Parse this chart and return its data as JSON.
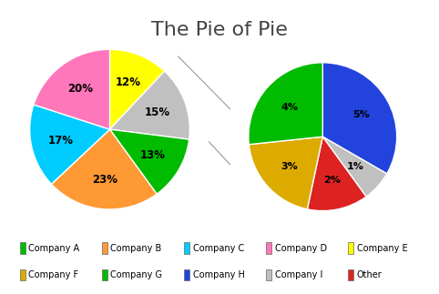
{
  "title": "The Pie of Pie",
  "title_fontsize": 16,
  "main_pie": {
    "values": [
      12,
      15,
      13,
      23,
      17,
      20
    ],
    "colors": [
      "#ffff00",
      "#c0c0c0",
      "#00bb00",
      "#ff9933",
      "#00ccff",
      "#ff77bb"
    ],
    "pct_labels": [
      "12%",
      "15%",
      "13%",
      "23%",
      "17%",
      "20%"
    ],
    "startangle": 90,
    "other_idx": 1
  },
  "sub_pie": {
    "values": [
      5,
      1,
      2,
      3,
      4
    ],
    "colors": [
      "#2244dd",
      "#c0c0c0",
      "#dd2222",
      "#ddaa00",
      "#00bb00"
    ],
    "pct_labels": [
      "5%",
      "1%",
      "2%",
      "3%",
      "4%"
    ],
    "startangle": 90
  },
  "legend_entries": [
    {
      "label": "Company A",
      "color": "#00bb00"
    },
    {
      "label": "Company B",
      "color": "#ff9933"
    },
    {
      "label": "Company C",
      "color": "#00ccff"
    },
    {
      "label": "Company D",
      "color": "#ff77bb"
    },
    {
      "label": "Company E",
      "color": "#ffff00"
    },
    {
      "label": "Company F",
      "color": "#ddaa00"
    },
    {
      "label": "Company G",
      "color": "#00bb00"
    },
    {
      "label": "Company H",
      "color": "#2244dd"
    },
    {
      "label": "Company I",
      "color": "#c0c0c0"
    },
    {
      "label": "Other",
      "color": "#dd2222"
    }
  ],
  "connector_color": "#999999",
  "connector_lw": 0.8,
  "bg_color": "white",
  "border_color": "#cccccc"
}
